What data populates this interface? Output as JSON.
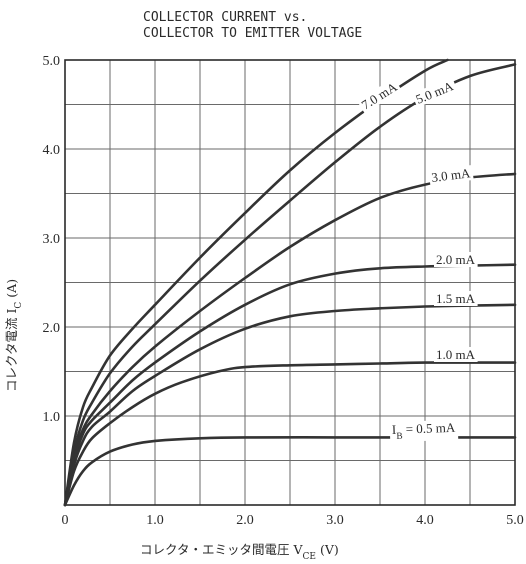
{
  "chart_data": {
    "type": "line",
    "title": [
      "COLLECTOR CURRENT vs.",
      "COLLECTOR TO EMITTER VOLTAGE"
    ],
    "xlabel": "コレクタ・エミッタ間電圧 V_CE (V)",
    "ylabel": "コレクタ電流 I_C (A)",
    "xlim": [
      0,
      5.0
    ],
    "ylim": [
      0,
      5.0
    ],
    "xticks": [
      "0",
      "1.0",
      "2.0",
      "3.0",
      "4.0",
      "5.0"
    ],
    "yticks": [
      "1.0",
      "2.0",
      "3.0",
      "4.0",
      "5.0"
    ],
    "grid": true,
    "series": [
      {
        "name": "7.0 mA",
        "x": [
          0,
          0.1,
          0.2,
          0.3,
          0.5,
          0.75,
          1.0,
          1.5,
          2.0,
          2.5,
          3.0,
          3.5,
          4.0,
          4.25
        ],
        "y": [
          0,
          0.7,
          1.1,
          1.32,
          1.68,
          1.98,
          2.25,
          2.78,
          3.28,
          3.76,
          4.18,
          4.55,
          4.88,
          5.0
        ]
      },
      {
        "name": "5.0 mA",
        "x": [
          0,
          0.1,
          0.2,
          0.3,
          0.5,
          0.75,
          1.0,
          1.5,
          2.0,
          2.5,
          3.0,
          3.5,
          4.0,
          4.5,
          5.0
        ],
        "y": [
          0,
          0.6,
          0.95,
          1.15,
          1.48,
          1.78,
          2.03,
          2.52,
          2.98,
          3.42,
          3.85,
          4.25,
          4.58,
          4.82,
          4.95
        ]
      },
      {
        "name": "3.0 mA",
        "x": [
          0,
          0.1,
          0.2,
          0.3,
          0.5,
          0.75,
          1.0,
          1.5,
          2.0,
          2.5,
          3.0,
          3.5,
          4.0,
          4.5,
          5.0
        ],
        "y": [
          0,
          0.55,
          0.85,
          1.02,
          1.28,
          1.55,
          1.78,
          2.18,
          2.55,
          2.9,
          3.2,
          3.45,
          3.6,
          3.68,
          3.72
        ]
      },
      {
        "name": "2.0 mA",
        "x": [
          0,
          0.1,
          0.2,
          0.3,
          0.5,
          0.75,
          1.0,
          1.5,
          2.0,
          2.5,
          3.0,
          3.5,
          4.0,
          4.5,
          5.0
        ],
        "y": [
          0,
          0.5,
          0.8,
          0.95,
          1.15,
          1.4,
          1.6,
          1.95,
          2.25,
          2.48,
          2.6,
          2.66,
          2.68,
          2.69,
          2.7
        ]
      },
      {
        "name": "1.5 mA",
        "x": [
          0,
          0.1,
          0.2,
          0.3,
          0.5,
          0.75,
          1.0,
          1.5,
          2.0,
          2.5,
          3.0,
          3.5,
          4.0,
          4.5,
          5.0
        ],
        "y": [
          0,
          0.45,
          0.72,
          0.88,
          1.05,
          1.28,
          1.45,
          1.75,
          1.98,
          2.12,
          2.18,
          2.21,
          2.23,
          2.24,
          2.25
        ]
      },
      {
        "name": "1.0 mA",
        "x": [
          0,
          0.1,
          0.2,
          0.3,
          0.5,
          0.75,
          1.0,
          1.3,
          1.7,
          2.0,
          2.5,
          3.0,
          3.5,
          4.0,
          4.5,
          5.0
        ],
        "y": [
          0,
          0.38,
          0.6,
          0.75,
          0.92,
          1.1,
          1.25,
          1.38,
          1.5,
          1.55,
          1.57,
          1.58,
          1.59,
          1.6,
          1.6,
          1.6
        ]
      },
      {
        "name": "I_B = 0.5 mA",
        "x": [
          0,
          0.1,
          0.2,
          0.3,
          0.5,
          0.75,
          1.0,
          1.5,
          2.0,
          3.0,
          4.0,
          5.0
        ],
        "y": [
          0,
          0.22,
          0.38,
          0.48,
          0.6,
          0.68,
          0.72,
          0.75,
          0.76,
          0.76,
          0.76,
          0.76
        ]
      }
    ]
  }
}
